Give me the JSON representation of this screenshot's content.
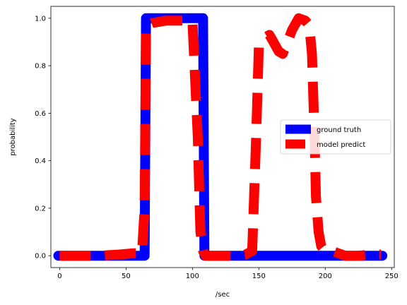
{
  "chart_data": {
    "type": "line",
    "xlabel": "/sec",
    "ylabel": "probability",
    "xlim": [
      -6.6,
      252
    ],
    "ylim": [
      -0.05,
      1.05
    ],
    "xticks": [
      0,
      50,
      100,
      150,
      200,
      250
    ],
    "yticks": [
      0.0,
      0.2,
      0.4,
      0.6,
      0.8,
      1.0
    ],
    "xtick_labels": [
      "0",
      "50",
      "100",
      "150",
      "200",
      "250"
    ],
    "ytick_labels": [
      "0.0",
      "0.2",
      "0.4",
      "0.6",
      "0.8",
      "1.0"
    ],
    "legend_position": "center right",
    "series": [
      {
        "name": "ground truth",
        "color": "#0000ff",
        "style": "solid",
        "x": [
          -1,
          64,
          65,
          108,
          109,
          243
        ],
        "y": [
          0.0,
          0.0,
          1.0,
          1.0,
          0.0,
          0.0
        ]
      },
      {
        "name": "model predict",
        "color": "#ff0000",
        "style": "dashed",
        "x": [
          0,
          15,
          30,
          45,
          55,
          62,
          64,
          65,
          70,
          80,
          90,
          100,
          104,
          106,
          108,
          110,
          115,
          130,
          140,
          145,
          148,
          150,
          153,
          155,
          158,
          160,
          163,
          165,
          168,
          170,
          173,
          175,
          180,
          185,
          188,
          190,
          192,
          193,
          195,
          197,
          200,
          205,
          215,
          225,
          235,
          242
        ],
        "y": [
          0.0,
          0.0,
          0.0,
          0.005,
          0.01,
          0.01,
          0.2,
          0.97,
          0.98,
          0.99,
          0.99,
          0.99,
          0.5,
          0.1,
          0.02,
          0.0,
          0.0,
          0.0,
          0.005,
          0.02,
          0.5,
          0.88,
          0.9,
          0.92,
          0.93,
          0.91,
          0.88,
          0.86,
          0.85,
          0.88,
          0.92,
          0.95,
          1.0,
          0.99,
          0.97,
          0.85,
          0.5,
          0.25,
          0.1,
          0.04,
          0.02,
          0.02,
          0.0,
          0.0,
          0.005,
          0.005
        ]
      }
    ]
  }
}
